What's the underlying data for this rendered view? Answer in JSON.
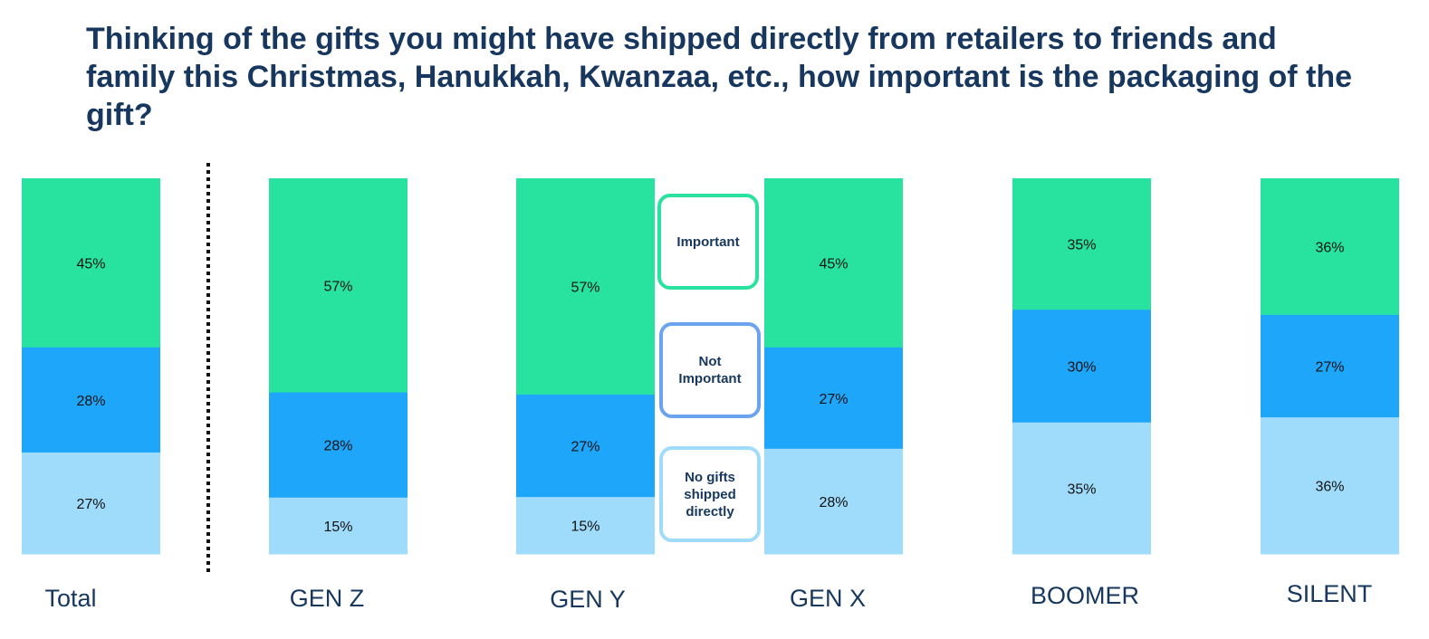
{
  "chart_data": {
    "type": "bar",
    "stacked": true,
    "normalized": true,
    "title": "Thinking of the gifts you might have shipped directly from retailers to friends and family this Christmas, Hanukkah, Kwanzaa, etc., how important is the packaging of the gift?",
    "categories": [
      "Total",
      "GEN Z",
      "GEN Y",
      "GEN X",
      "BOOMER",
      "SILENT"
    ],
    "series": [
      {
        "name": "Important",
        "legend_label": "Important",
        "color": "#28e2a0",
        "values": [
          45,
          57,
          57,
          45,
          35,
          36
        ],
        "labels": [
          "45%",
          "57%",
          "57%",
          "45%",
          "35%",
          "36%"
        ]
      },
      {
        "name": "Not Important",
        "legend_label": "Not\nImportant",
        "color": "#1ea6fb",
        "values": [
          28,
          28,
          27,
          27,
          30,
          27
        ],
        "labels": [
          "28%",
          "28%",
          "27%",
          "27%",
          "30%",
          "27%"
        ]
      },
      {
        "name": "No gifts shipped directly",
        "legend_label": "No gifts\nshipped\ndirectly",
        "color": "#9fdcfb",
        "values": [
          27,
          15,
          15,
          28,
          35,
          36
        ],
        "labels": [
          "27%",
          "15%",
          "15%",
          "28%",
          "35%",
          "36%"
        ]
      }
    ],
    "legend_border_colors": [
      "#28e2a0",
      "#6aa3ee",
      "#9fdcfb"
    ],
    "separator_after": "Total"
  }
}
